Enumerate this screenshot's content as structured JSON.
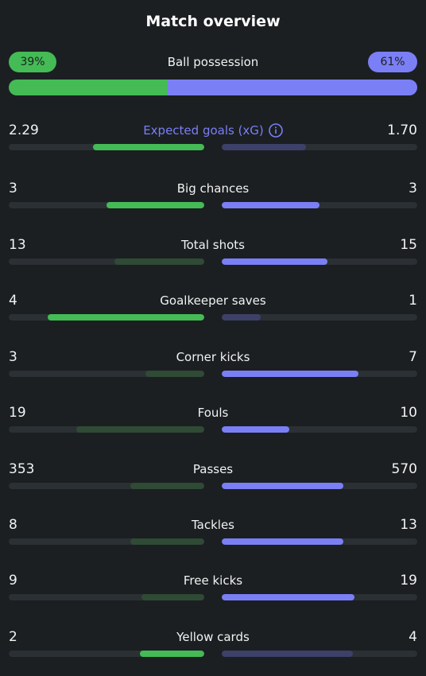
{
  "title": "Match overview",
  "possession": {
    "label": "Ball possession",
    "home": "39%",
    "away": "61%",
    "home_fraction": 0.39,
    "away_fraction": 0.61,
    "home_color": "#44bb55",
    "away_color": "#7b7ff5"
  },
  "colors": {
    "home_win": "#44bb55",
    "home_lose": "#2f4a35",
    "away_win": "#7b7ff5",
    "away_lose": "#3d4068",
    "track": "#2b3034"
  },
  "stats": [
    {
      "label": "Expected goals (xG)",
      "home": "2.29",
      "away": "1.70",
      "home_fill": 0.57,
      "away_fill": 0.43,
      "highlight": "home",
      "info_icon": "info-icon"
    },
    {
      "label": "Big chances",
      "home": "3",
      "away": "3",
      "home_fill": 0.5,
      "away_fill": 0.5,
      "highlight": "both"
    },
    {
      "label": "Total shots",
      "home": "13",
      "away": "15",
      "home_fill": 0.46,
      "away_fill": 0.54,
      "highlight": "away"
    },
    {
      "label": "Goalkeeper saves",
      "home": "4",
      "away": "1",
      "home_fill": 0.8,
      "away_fill": 0.2,
      "highlight": "home"
    },
    {
      "label": "Corner kicks",
      "home": "3",
      "away": "7",
      "home_fill": 0.3,
      "away_fill": 0.7,
      "highlight": "away"
    },
    {
      "label": "Fouls",
      "home": "19",
      "away": "10",
      "home_fill": 0.655,
      "away_fill": 0.345,
      "highlight": "away"
    },
    {
      "label": "Passes",
      "home": "353",
      "away": "570",
      "home_fill": 0.38,
      "away_fill": 0.62,
      "highlight": "away"
    },
    {
      "label": "Tackles",
      "home": "8",
      "away": "13",
      "home_fill": 0.38,
      "away_fill": 0.62,
      "highlight": "away"
    },
    {
      "label": "Free kicks",
      "home": "9",
      "away": "19",
      "home_fill": 0.32,
      "away_fill": 0.68,
      "highlight": "away"
    },
    {
      "label": "Yellow cards",
      "home": "2",
      "away": "4",
      "home_fill": 0.33,
      "away_fill": 0.67,
      "highlight": "home"
    }
  ]
}
